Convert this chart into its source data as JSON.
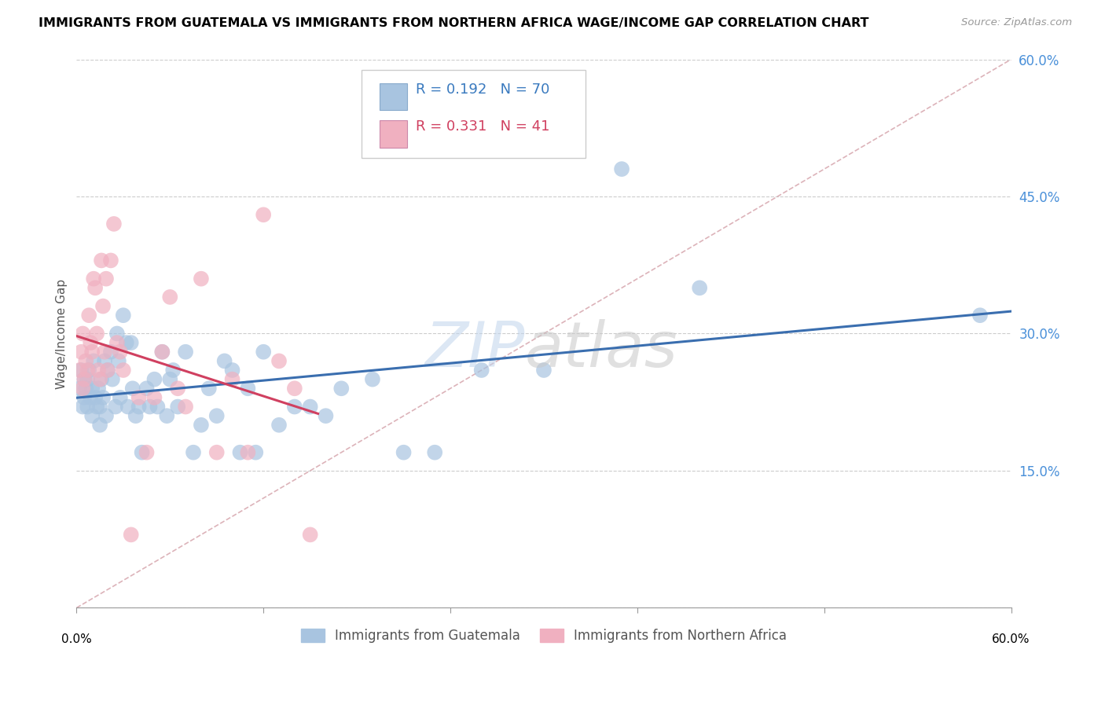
{
  "title": "IMMIGRANTS FROM GUATEMALA VS IMMIGRANTS FROM NORTHERN AFRICA WAGE/INCOME GAP CORRELATION CHART",
  "source": "Source: ZipAtlas.com",
  "ylabel": "Wage/Income Gap",
  "R_blue": 0.192,
  "N_blue": 70,
  "R_pink": 0.331,
  "N_pink": 41,
  "legend_label_blue": "Immigrants from Guatemala",
  "legend_label_pink": "Immigrants from Northern Africa",
  "blue_color": "#a8c4e0",
  "blue_line_color": "#3a6eaf",
  "pink_color": "#f0b0c0",
  "pink_line_color": "#d04060",
  "diag_color": "#d4a0a8",
  "blue_x": [
    0.002,
    0.003,
    0.004,
    0.005,
    0.005,
    0.006,
    0.007,
    0.007,
    0.008,
    0.009,
    0.01,
    0.01,
    0.011,
    0.012,
    0.013,
    0.014,
    0.015,
    0.015,
    0.016,
    0.017,
    0.018,
    0.019,
    0.02,
    0.022,
    0.023,
    0.025,
    0.026,
    0.027,
    0.028,
    0.03,
    0.032,
    0.033,
    0.035,
    0.036,
    0.038,
    0.04,
    0.042,
    0.045,
    0.047,
    0.05,
    0.052,
    0.055,
    0.058,
    0.06,
    0.062,
    0.065,
    0.07,
    0.075,
    0.08,
    0.085,
    0.09,
    0.095,
    0.1,
    0.105,
    0.11,
    0.115,
    0.12,
    0.13,
    0.14,
    0.15,
    0.16,
    0.17,
    0.19,
    0.21,
    0.23,
    0.26,
    0.3,
    0.35,
    0.4,
    0.58
  ],
  "blue_y": [
    0.24,
    0.26,
    0.22,
    0.25,
    0.23,
    0.24,
    0.25,
    0.22,
    0.26,
    0.23,
    0.24,
    0.21,
    0.27,
    0.23,
    0.22,
    0.24,
    0.22,
    0.2,
    0.25,
    0.23,
    0.27,
    0.21,
    0.26,
    0.28,
    0.25,
    0.22,
    0.3,
    0.27,
    0.23,
    0.32,
    0.29,
    0.22,
    0.29,
    0.24,
    0.21,
    0.22,
    0.17,
    0.24,
    0.22,
    0.25,
    0.22,
    0.28,
    0.21,
    0.25,
    0.26,
    0.22,
    0.28,
    0.17,
    0.2,
    0.24,
    0.21,
    0.27,
    0.26,
    0.17,
    0.24,
    0.17,
    0.28,
    0.2,
    0.22,
    0.22,
    0.21,
    0.24,
    0.25,
    0.17,
    0.17,
    0.26,
    0.26,
    0.48,
    0.35,
    0.32
  ],
  "pink_x": [
    0.002,
    0.003,
    0.004,
    0.004,
    0.005,
    0.006,
    0.007,
    0.008,
    0.009,
    0.01,
    0.011,
    0.012,
    0.013,
    0.014,
    0.015,
    0.016,
    0.017,
    0.018,
    0.019,
    0.02,
    0.022,
    0.024,
    0.026,
    0.028,
    0.03,
    0.035,
    0.04,
    0.045,
    0.05,
    0.055,
    0.06,
    0.065,
    0.07,
    0.08,
    0.09,
    0.1,
    0.11,
    0.12,
    0.13,
    0.14,
    0.15
  ],
  "pink_y": [
    0.26,
    0.28,
    0.24,
    0.3,
    0.25,
    0.27,
    0.26,
    0.32,
    0.29,
    0.28,
    0.36,
    0.35,
    0.3,
    0.26,
    0.25,
    0.38,
    0.33,
    0.28,
    0.36,
    0.26,
    0.38,
    0.42,
    0.29,
    0.28,
    0.26,
    0.08,
    0.23,
    0.17,
    0.23,
    0.28,
    0.34,
    0.24,
    0.22,
    0.36,
    0.17,
    0.25,
    0.17,
    0.43,
    0.27,
    0.24,
    0.08
  ],
  "x_lim": [
    0.0,
    0.6
  ],
  "y_lim": [
    0.0,
    0.6
  ],
  "y_ticks": [
    0.0,
    0.15,
    0.3,
    0.45,
    0.6
  ],
  "y_tick_labels": [
    "",
    "15.0%",
    "30.0%",
    "45.0%",
    "60.0%"
  ],
  "x_tick_labels": [
    "0.0%",
    "",
    "",
    "",
    "",
    "60.0%"
  ]
}
